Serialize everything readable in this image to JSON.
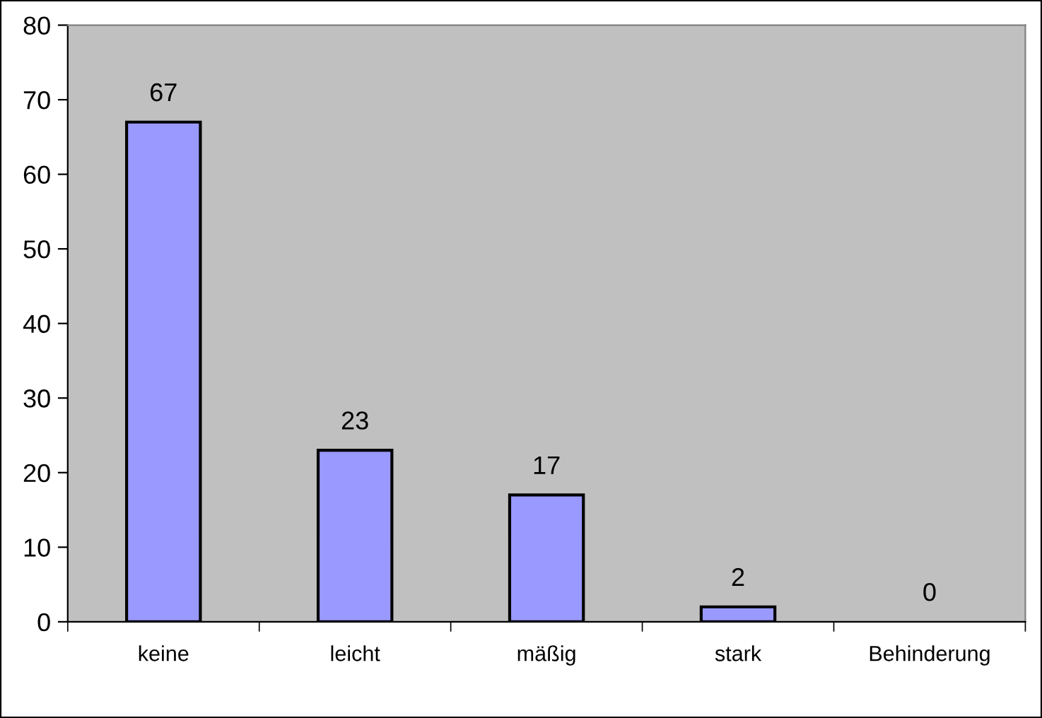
{
  "chart_data": {
    "type": "bar",
    "categories": [
      "keine",
      "leicht",
      "mäßig",
      "stark",
      "Behinderung"
    ],
    "values": [
      67,
      23,
      17,
      2,
      0
    ],
    "color": "#9999ff",
    "ylim": [
      0,
      80
    ],
    "yticks": [
      0,
      10,
      20,
      30,
      40,
      50,
      60,
      70,
      80
    ],
    "grid": false,
    "data_labels": true
  }
}
